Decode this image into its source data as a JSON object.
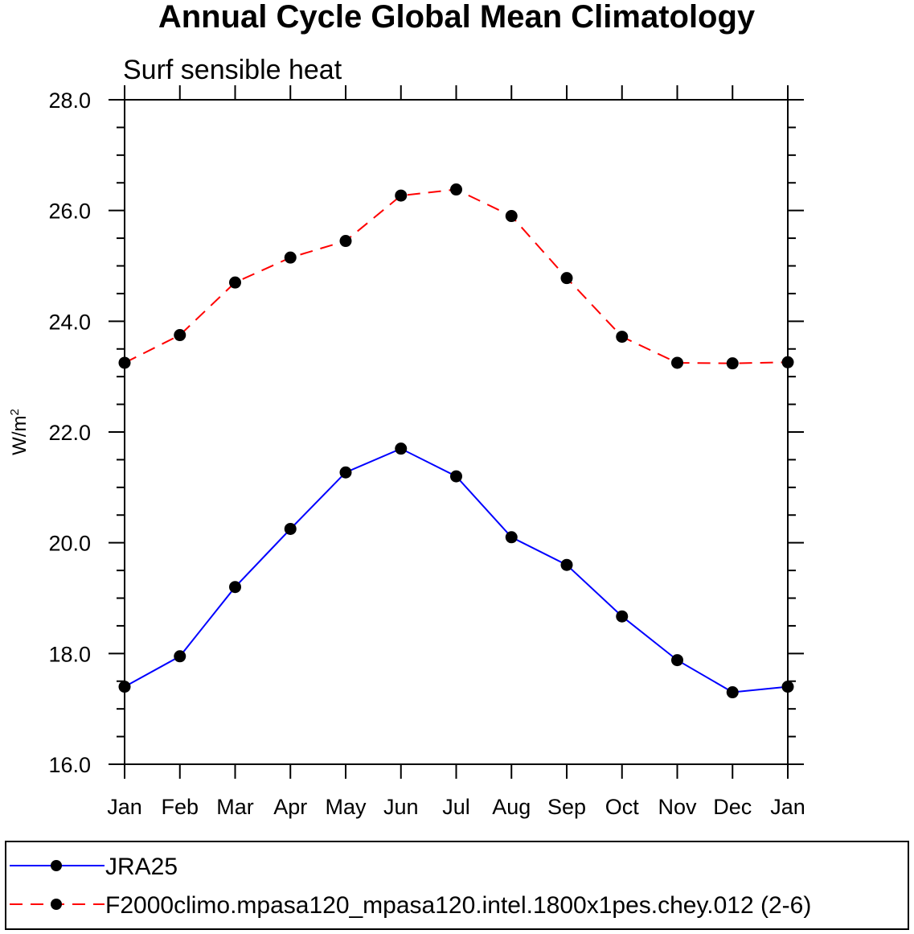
{
  "chart_data": {
    "type": "line",
    "title": "Annual Cycle Global Mean Climatology",
    "subtitle": "Surf sensible heat",
    "ylabel": "W/m",
    "ylabel_superscript": "2",
    "xlabel": "",
    "categories": [
      "Jan",
      "Feb",
      "Mar",
      "Apr",
      "May",
      "Jun",
      "Jul",
      "Aug",
      "Sep",
      "Oct",
      "Nov",
      "Dec",
      "Jan"
    ],
    "ylim": [
      16.0,
      28.0
    ],
    "yticks": [
      "16.0",
      "18.0",
      "20.0",
      "22.0",
      "24.0",
      "26.0",
      "28.0"
    ],
    "grid": false,
    "legend_position": "bottom",
    "series": [
      {
        "name": "JRA25",
        "color": "#0000ff",
        "line_style": "solid",
        "marker": "filled-circle",
        "values": [
          17.4,
          17.95,
          19.2,
          20.25,
          21.27,
          21.7,
          21.2,
          20.1,
          19.6,
          18.67,
          17.88,
          17.3,
          17.4
        ]
      },
      {
        "name": "F2000climo.mpasa120_mpasa120.intel.1800x1pes.chey.012 (2-6)",
        "color": "#ff0000",
        "line_style": "dashed",
        "marker": "filled-circle",
        "values": [
          23.25,
          23.75,
          24.7,
          25.15,
          25.45,
          26.27,
          26.38,
          25.9,
          24.78,
          23.72,
          23.25,
          23.24,
          23.26
        ]
      }
    ]
  }
}
